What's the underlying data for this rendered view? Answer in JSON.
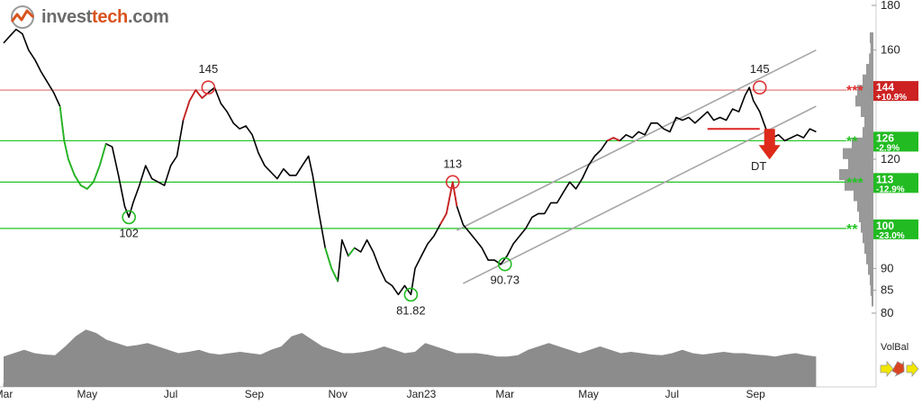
{
  "logo": {
    "part1": "invest",
    "part2": "tech",
    "part3": ".com",
    "icon": "investtech-logo-icon"
  },
  "volbal_label": "VolBal",
  "colors": {
    "price_line": "#000000",
    "up_trend": "#22b822",
    "down_trend": "#cc2222",
    "resistance": "#e08080",
    "support": "#22c422",
    "channel": "#a6a6a6",
    "volume": "#8c8c8c",
    "volume_profile": "#999999"
  },
  "chart_data": {
    "type": "line",
    "y_axis": {
      "min": 80,
      "max": 180,
      "scale": "log",
      "ticks": [
        {
          "v": 180,
          "label": "180"
        },
        {
          "v": 160,
          "label": "160"
        },
        {
          "v": 120,
          "label": "120"
        },
        {
          "v": 90,
          "label": "90"
        },
        {
          "v": 85,
          "label": "85"
        },
        {
          "v": 80,
          "label": "80"
        }
      ]
    },
    "x_axis": {
      "labels": [
        {
          "t": 0,
          "label": "Mar"
        },
        {
          "t": 2.0,
          "label": "May"
        },
        {
          "t": 4.0,
          "label": "Jul"
        },
        {
          "t": 6.0,
          "label": "Sep"
        },
        {
          "t": 8.0,
          "label": "Nov"
        },
        {
          "t": 10.0,
          "label": "Jan23"
        },
        {
          "t": 12.0,
          "label": "Mar"
        },
        {
          "t": 14.0,
          "label": "May"
        },
        {
          "t": 16.0,
          "label": "Jul"
        },
        {
          "t": 18.0,
          "label": "Sep"
        }
      ]
    },
    "price": [
      [
        0,
        163
      ],
      [
        0.15,
        166
      ],
      [
        0.3,
        169
      ],
      [
        0.45,
        167
      ],
      [
        0.6,
        160
      ],
      [
        0.75,
        156
      ],
      [
        0.9,
        151
      ],
      [
        1.05,
        147
      ],
      [
        1.2,
        143
      ],
      [
        1.35,
        138
      ],
      [
        1.45,
        126
      ],
      [
        1.55,
        120
      ],
      [
        1.7,
        115
      ],
      [
        1.85,
        112
      ],
      [
        2.0,
        111
      ],
      [
        2.15,
        113
      ],
      [
        2.3,
        118
      ],
      [
        2.45,
        125
      ],
      [
        2.6,
        124
      ],
      [
        2.75,
        115
      ],
      [
        2.9,
        106
      ],
      [
        3.0,
        103
      ],
      [
        3.1,
        107
      ],
      [
        3.25,
        112
      ],
      [
        3.4,
        118
      ],
      [
        3.55,
        114
      ],
      [
        3.7,
        113
      ],
      [
        3.85,
        112
      ],
      [
        4.0,
        118
      ],
      [
        4.15,
        121
      ],
      [
        4.3,
        133
      ],
      [
        4.45,
        140
      ],
      [
        4.6,
        144
      ],
      [
        4.75,
        141
      ],
      [
        4.9,
        143
      ],
      [
        5.05,
        145
      ],
      [
        5.2,
        139
      ],
      [
        5.35,
        136
      ],
      [
        5.5,
        132
      ],
      [
        5.65,
        130
      ],
      [
        5.8,
        131
      ],
      [
        5.95,
        128
      ],
      [
        6.1,
        122
      ],
      [
        6.25,
        118
      ],
      [
        6.4,
        116
      ],
      [
        6.55,
        114
      ],
      [
        6.7,
        117
      ],
      [
        6.85,
        115
      ],
      [
        7.0,
        115
      ],
      [
        7.15,
        118
      ],
      [
        7.3,
        121
      ],
      [
        7.4,
        115
      ],
      [
        7.55,
        104
      ],
      [
        7.7,
        95
      ],
      [
        7.85,
        90
      ],
      [
        8.0,
        87
      ],
      [
        8.1,
        97
      ],
      [
        8.25,
        93
      ],
      [
        8.4,
        95
      ],
      [
        8.55,
        94
      ],
      [
        8.7,
        97
      ],
      [
        8.85,
        94
      ],
      [
        9.0,
        90
      ],
      [
        9.15,
        87
      ],
      [
        9.3,
        86
      ],
      [
        9.45,
        84
      ],
      [
        9.6,
        86
      ],
      [
        9.75,
        84
      ],
      [
        9.85,
        90
      ],
      [
        10.0,
        93
      ],
      [
        10.15,
        96
      ],
      [
        10.3,
        98
      ],
      [
        10.45,
        101
      ],
      [
        10.6,
        104
      ],
      [
        10.75,
        113
      ],
      [
        10.85,
        106
      ],
      [
        11.0,
        101
      ],
      [
        11.15,
        99
      ],
      [
        11.3,
        97
      ],
      [
        11.45,
        95
      ],
      [
        11.6,
        92
      ],
      [
        11.75,
        92
      ],
      [
        11.9,
        91
      ],
      [
        12.05,
        93
      ],
      [
        12.2,
        96
      ],
      [
        12.35,
        98
      ],
      [
        12.5,
        100
      ],
      [
        12.65,
        103
      ],
      [
        12.8,
        104
      ],
      [
        12.95,
        104
      ],
      [
        13.1,
        107
      ],
      [
        13.25,
        107
      ],
      [
        13.4,
        110
      ],
      [
        13.55,
        113
      ],
      [
        13.7,
        111
      ],
      [
        13.85,
        114
      ],
      [
        14.0,
        118
      ],
      [
        14.15,
        121
      ],
      [
        14.3,
        123
      ],
      [
        14.45,
        126
      ],
      [
        14.6,
        127
      ],
      [
        14.75,
        126
      ],
      [
        14.9,
        128
      ],
      [
        15.05,
        127
      ],
      [
        15.2,
        129
      ],
      [
        15.35,
        128
      ],
      [
        15.5,
        132
      ],
      [
        15.65,
        132
      ],
      [
        15.8,
        130
      ],
      [
        15.95,
        129
      ],
      [
        16.1,
        134
      ],
      [
        16.25,
        133
      ],
      [
        16.4,
        134
      ],
      [
        16.55,
        132
      ],
      [
        16.7,
        134
      ],
      [
        16.85,
        136
      ],
      [
        17.0,
        133
      ],
      [
        17.15,
        134
      ],
      [
        17.3,
        133
      ],
      [
        17.45,
        137
      ],
      [
        17.6,
        136
      ],
      [
        17.75,
        142
      ],
      [
        17.85,
        145
      ],
      [
        17.95,
        140
      ],
      [
        18.1,
        136
      ],
      [
        18.25,
        130
      ],
      [
        18.4,
        127
      ],
      [
        18.55,
        128
      ],
      [
        18.7,
        126
      ],
      [
        18.85,
        127
      ],
      [
        19.0,
        128
      ],
      [
        19.15,
        127
      ],
      [
        19.3,
        130
      ],
      [
        19.45,
        129
      ]
    ],
    "colored_segments": [
      {
        "from": 1.35,
        "to": 2.5,
        "trend": "up"
      },
      {
        "from": 4.3,
        "to": 4.9,
        "trend": "down"
      },
      {
        "from": 7.7,
        "to": 8.0,
        "trend": "up"
      },
      {
        "from": 8.25,
        "to": 8.4,
        "trend": "up"
      },
      {
        "from": 10.45,
        "to": 10.85,
        "trend": "down"
      },
      {
        "from": 14.45,
        "to": 14.75,
        "trend": "down"
      }
    ],
    "channel_lines": [
      {
        "from": [
          10.85,
          99.5
        ],
        "to": [
          19.45,
          160
        ]
      },
      {
        "from": [
          11.0,
          86.5
        ],
        "to": [
          19.45,
          138
        ]
      }
    ],
    "horizontal_levels": [
      {
        "value": 144,
        "kind": "resistance",
        "stars": "***",
        "label": "144",
        "pct": "+10.9%"
      },
      {
        "value": 126,
        "kind": "support",
        "stars": "**",
        "label": "126",
        "pct": "-2.9%"
      },
      {
        "value": 113,
        "kind": "support",
        "stars": "***",
        "label": "113",
        "pct": "-12.9%"
      },
      {
        "value": 100,
        "kind": "support",
        "stars": "**",
        "label": "100",
        "pct": "-23.0%"
      }
    ],
    "peaks": [
      {
        "t": 4.9,
        "v": 145,
        "label": "145",
        "kind": "top"
      },
      {
        "t": 10.75,
        "v": 113,
        "label": "113",
        "kind": "top"
      },
      {
        "t": 18.1,
        "v": 145,
        "label": "145",
        "kind": "top"
      }
    ],
    "troughs": [
      {
        "t": 3.0,
        "v": 103,
        "label": "102",
        "kind": "bottom"
      },
      {
        "t": 9.75,
        "v": 84,
        "label": "81.82",
        "kind": "bottom"
      },
      {
        "t": 12.0,
        "v": 91,
        "label": "90.73",
        "kind": "bottom"
      }
    ],
    "signal": {
      "label": "DT",
      "t": 18.25,
      "v": 130,
      "direction": "down"
    },
    "breakdown_line": {
      "from": [
        16.85,
        130
      ],
      "to": [
        18.1,
        130
      ]
    },
    "volume_profile_bins": [
      0.1,
      0.08,
      0.12,
      0.2,
      0.3,
      0.45,
      0.5,
      0.35,
      0.25,
      0.3,
      0.6,
      0.85,
      0.7,
      0.95,
      0.8,
      0.55,
      0.45,
      0.4,
      0.35,
      0.3,
      0.25,
      0.2,
      0.15,
      0.1,
      0.08,
      0.05
    ],
    "volume": [
      0.45,
      0.5,
      0.55,
      0.5,
      0.48,
      0.47,
      0.6,
      0.75,
      0.85,
      0.8,
      0.7,
      0.65,
      0.6,
      0.62,
      0.65,
      0.6,
      0.55,
      0.5,
      0.52,
      0.55,
      0.5,
      0.48,
      0.5,
      0.52,
      0.5,
      0.48,
      0.55,
      0.6,
      0.75,
      0.8,
      0.7,
      0.6,
      0.55,
      0.5,
      0.5,
      0.52,
      0.55,
      0.6,
      0.55,
      0.5,
      0.52,
      0.65,
      0.6,
      0.55,
      0.5,
      0.5,
      0.5,
      0.48,
      0.45,
      0.45,
      0.47,
      0.55,
      0.6,
      0.65,
      0.6,
      0.55,
      0.5,
      0.55,
      0.6,
      0.55,
      0.5,
      0.52,
      0.5,
      0.48,
      0.47,
      0.5,
      0.55,
      0.5,
      0.48,
      0.5,
      0.52,
      0.5,
      0.5,
      0.48,
      0.47,
      0.45,
      0.48,
      0.5,
      0.47,
      0.45
    ]
  }
}
